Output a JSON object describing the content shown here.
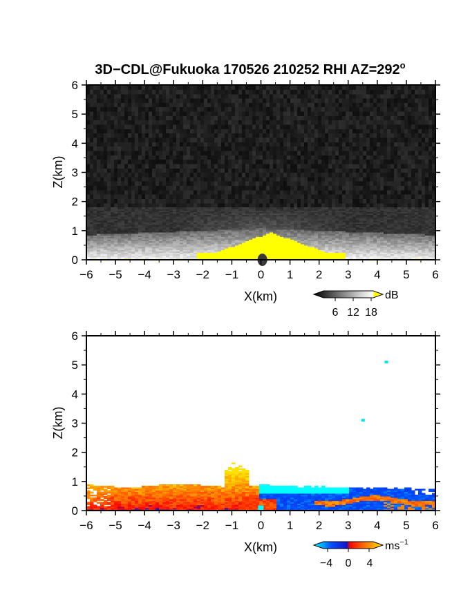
{
  "figure": {
    "title_main": "3D−CDL@Fukuoka 170526 210252 RHI AZ=292",
    "title_sup": "o"
  },
  "chart_data": [
    {
      "type": "heatmap",
      "panel": "backscatter",
      "xlabel": "X(km)",
      "ylabel": "Z(km)",
      "xlim": [
        -6,
        6
      ],
      "ylim": [
        0,
        6
      ],
      "xticks": [
        "−6",
        "−5",
        "−4",
        "−3",
        "−2",
        "−1",
        "0",
        "1",
        "2",
        "3",
        "4",
        "5",
        "6"
      ],
      "yticks": [
        "0",
        "1",
        "2",
        "3",
        "4",
        "5",
        "6"
      ],
      "colorbar": {
        "unit": "dB",
        "ticks": [
          "6",
          "12",
          "18"
        ],
        "range": [
          0,
          20
        ],
        "colors": [
          "#000000",
          "#3a3a3a",
          "#7a7a7a",
          "#bdbdbd",
          "#f2f2f2",
          "#ffff00"
        ]
      },
      "features": {
        "background": "noise, dark grey below ~3 dB everywhere above 1 km",
        "strong_echo_layer_top_km": 1.0,
        "saturated_region": "x -2.2 to 2.9 km, z 0 to 1 km, >18 dB"
      }
    },
    {
      "type": "heatmap",
      "panel": "doppler",
      "xlabel": "X(km)",
      "ylabel": "Z(km)",
      "xlim": [
        -6,
        6
      ],
      "ylim": [
        0,
        6
      ],
      "xticks": [
        "−6",
        "−5",
        "−4",
        "−3",
        "−2",
        "−1",
        "0",
        "1",
        "2",
        "3",
        "4",
        "5",
        "6"
      ],
      "yticks": [
        "0",
        "1",
        "2",
        "3",
        "4",
        "5",
        "6"
      ],
      "colorbar": {
        "unit": "ms",
        "unit_sup": "−1",
        "ticks": [
          "−4",
          "0",
          "4"
        ],
        "range": [
          -5,
          5
        ],
        "colors": [
          "#00ffff",
          "#0050ff",
          "#1414c8",
          "#ff0000",
          "#ff7800",
          "#ffe100"
        ]
      },
      "features": {
        "positive_side": "x -6 to 0 km, 0 to 4 m/s, top ~0.9 km",
        "negative_side": "x 0 to 6 km, about -4 m/s, top ~0.8 km",
        "isolated_points_km": [
          [
            4.3,
            5.1
          ],
          [
            3.5,
            3.1
          ]
        ]
      }
    }
  ]
}
